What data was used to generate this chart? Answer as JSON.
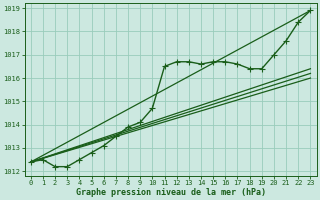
{
  "background_color": "#cce8e0",
  "grid_color": "#99ccbb",
  "line_color": "#1a5e1a",
  "marker_color": "#1a5e1a",
  "xlabel": "Graphe pression niveau de la mer (hPa)",
  "xlim": [
    -0.5,
    23.5
  ],
  "ylim": [
    1011.8,
    1019.2
  ],
  "yticks": [
    1012,
    1013,
    1014,
    1015,
    1016,
    1017,
    1018,
    1019
  ],
  "xticks": [
    0,
    1,
    2,
    3,
    4,
    5,
    6,
    7,
    8,
    9,
    10,
    11,
    12,
    13,
    14,
    15,
    16,
    17,
    18,
    19,
    20,
    21,
    22,
    23
  ],
  "series": [
    {
      "x": [
        0,
        1,
        2,
        3,
        4,
        5,
        6,
        7,
        8,
        9,
        10,
        11,
        12,
        13,
        14,
        15,
        16,
        17,
        18,
        19,
        20,
        21,
        22,
        23
      ],
      "y": [
        1012.4,
        1012.5,
        1012.2,
        1012.2,
        1012.5,
        1012.8,
        1013.1,
        1013.5,
        1013.9,
        1014.1,
        1014.7,
        1016.5,
        1016.7,
        1016.7,
        1016.6,
        1016.7,
        1016.7,
        1016.6,
        1016.4,
        1016.4,
        1017.0,
        1017.6,
        1018.4,
        1018.9
      ],
      "marker": "+",
      "markersize": 4,
      "linewidth": 1.0,
      "zorder": 4
    },
    {
      "x": [
        0,
        23
      ],
      "y": [
        1012.4,
        1018.9
      ],
      "marker": "None",
      "markersize": 0,
      "linewidth": 0.9,
      "zorder": 2
    },
    {
      "x": [
        0,
        23
      ],
      "y": [
        1012.4,
        1016.4
      ],
      "marker": "None",
      "markersize": 0,
      "linewidth": 0.9,
      "zorder": 2
    },
    {
      "x": [
        0,
        23
      ],
      "y": [
        1012.4,
        1016.2
      ],
      "marker": "None",
      "markersize": 0,
      "linewidth": 0.9,
      "zorder": 2
    },
    {
      "x": [
        0,
        23
      ],
      "y": [
        1012.4,
        1016.0
      ],
      "marker": "None",
      "markersize": 0,
      "linewidth": 0.9,
      "zorder": 2
    }
  ]
}
